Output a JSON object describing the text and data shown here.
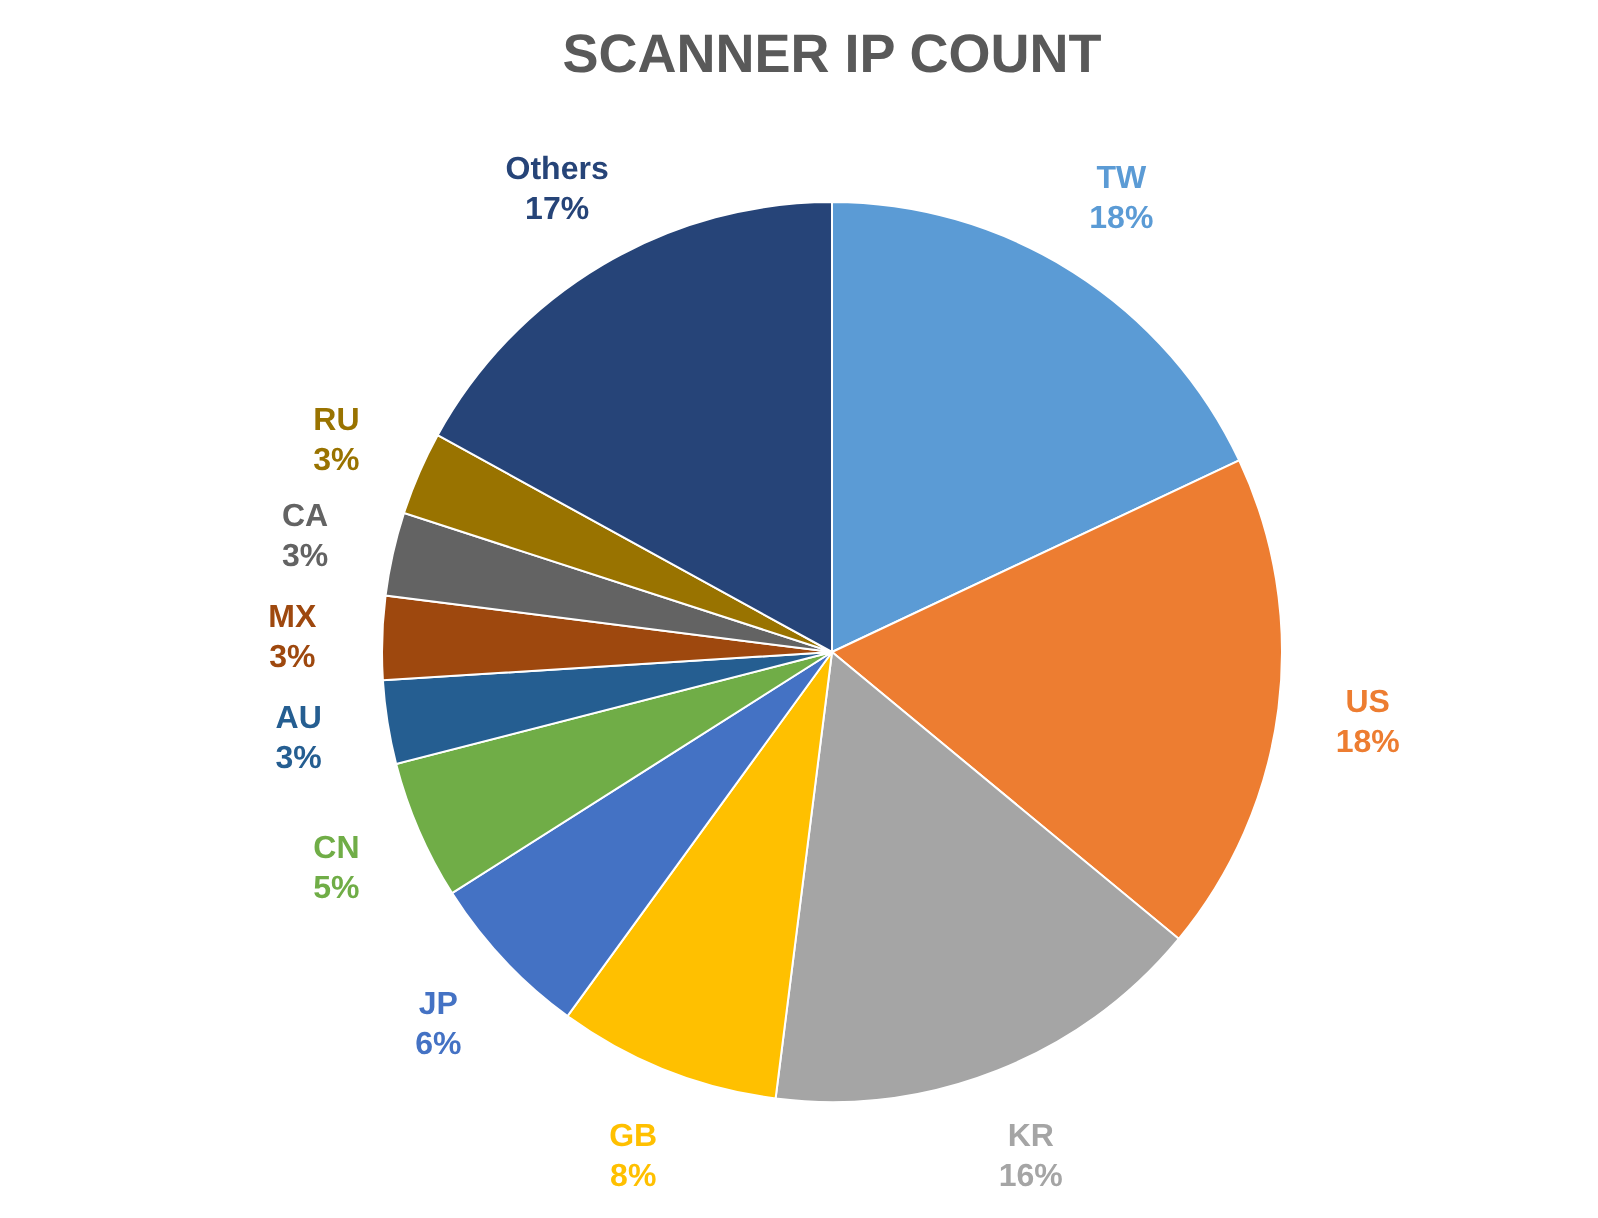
{
  "chart_data": {
    "type": "pie",
    "title": "SCANNER IP COUNT",
    "categories": [
      "TW",
      "US",
      "KR",
      "GB",
      "JP",
      "CN",
      "AU",
      "MX",
      "CA",
      "RU",
      "Others"
    ],
    "values": [
      18,
      18,
      16,
      8,
      6,
      5,
      3,
      3,
      3,
      3,
      17
    ],
    "colors": [
      "#5b9bd5",
      "#ed7d31",
      "#a5a5a5",
      "#ffc000",
      "#4472c4",
      "#70ad47",
      "#255e91",
      "#9e480e",
      "#636363",
      "#997300",
      "#264478"
    ],
    "value_labels": [
      "18%",
      "18%",
      "16%",
      "8%",
      "6%",
      "5%",
      "3%",
      "3%",
      "3%",
      "3%",
      "17%"
    ],
    "legend": false
  }
}
